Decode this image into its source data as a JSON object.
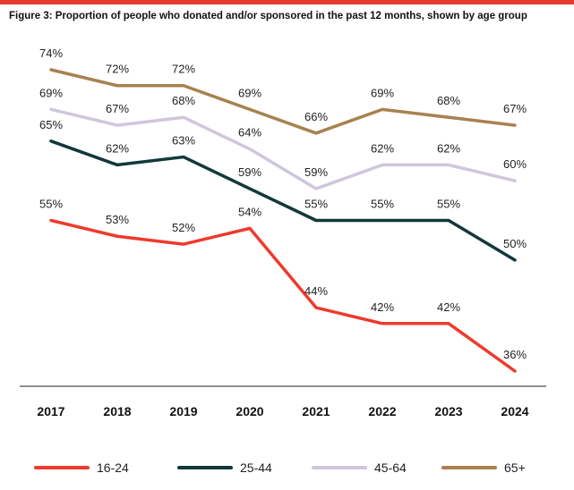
{
  "chart_data": {
    "type": "line",
    "title": "Figure 3: Proportion of people who donated and/or sponsored in the past 12 months, shown by age group",
    "categories": [
      "2017",
      "2018",
      "2019",
      "2020",
      "2021",
      "2022",
      "2023",
      "2024"
    ],
    "ylim": [
      30,
      78
    ],
    "grid": false,
    "xlabel": "",
    "ylabel": "",
    "legend_position": "bottom",
    "series": [
      {
        "name": "16-24",
        "color": "#ee3a2c",
        "values": [
          55,
          53,
          52,
          54,
          44,
          42,
          42,
          36
        ],
        "labels": [
          "55%",
          "53%",
          "52%",
          "54%",
          "44%",
          "42%",
          "42%",
          "36%"
        ]
      },
      {
        "name": "25-44",
        "color": "#13383a",
        "values": [
          65,
          62,
          63,
          59,
          55,
          55,
          55,
          50
        ],
        "labels": [
          "65%",
          "62%",
          "63%",
          "59%",
          "55%",
          "55%",
          "55%",
          "50%"
        ]
      },
      {
        "name": "45-64",
        "color": "#cfc6de",
        "values": [
          69,
          67,
          68,
          64,
          59,
          62,
          62,
          60
        ],
        "labels": [
          "69%",
          "67%",
          "68%",
          "64%",
          "59%",
          "62%",
          "62%",
          "60%"
        ]
      },
      {
        "name": "65+",
        "color": "#a88150",
        "values": [
          74,
          72,
          72,
          69,
          66,
          69,
          68,
          67
        ],
        "labels": [
          "74%",
          "72%",
          "72%",
          "69%",
          "66%",
          "69%",
          "68%",
          "67%"
        ]
      }
    ]
  }
}
